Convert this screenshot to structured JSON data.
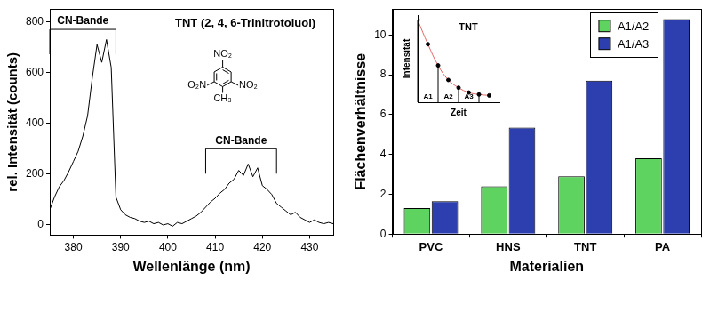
{
  "chart_data": [
    {
      "type": "line",
      "title": "TNT (2, 4, 6-Trinitrotoluol)",
      "x_label": "Wellenlänge (nm)",
      "y_label": "rel. Intensität (counts)",
      "x": [
        375,
        376,
        377,
        378,
        379,
        380,
        381,
        382,
        383,
        384,
        385,
        386,
        387,
        388,
        389,
        390,
        391,
        392,
        393,
        394,
        395,
        396,
        397,
        398,
        399,
        400,
        401,
        402,
        403,
        404,
        405,
        406,
        407,
        408,
        409,
        410,
        411,
        412,
        413,
        414,
        415,
        416,
        417,
        418,
        419,
        420,
        421,
        422,
        423,
        424,
        425,
        426,
        427,
        428,
        429,
        430,
        431,
        432,
        433,
        434,
        435
      ],
      "values": [
        60,
        110,
        150,
        175,
        210,
        250,
        290,
        350,
        430,
        580,
        710,
        640,
        730,
        620,
        110,
        60,
        40,
        30,
        25,
        15,
        10,
        15,
        5,
        10,
        0,
        5,
        -5,
        10,
        5,
        15,
        25,
        35,
        50,
        70,
        90,
        105,
        125,
        140,
        165,
        180,
        215,
        195,
        240,
        190,
        225,
        155,
        140,
        120,
        85,
        70,
        55,
        40,
        50,
        30,
        20,
        10,
        20,
        10,
        5,
        10,
        5
      ],
      "color": "#000000",
      "xlim": [
        375,
        435
      ],
      "xticks": [
        380,
        390,
        400,
        410,
        420,
        430
      ],
      "ylim": [
        -40,
        850
      ],
      "yticks": [
        0,
        200,
        400,
        600,
        800
      ],
      "grid": false,
      "annotations": [
        {
          "text": "CN-Bande",
          "x": [
            375,
            389
          ],
          "y": 770
        },
        {
          "text": "CN-Bande",
          "x": [
            408,
            423
          ],
          "y": 300
        }
      ],
      "structure_labels": [
        "NO₂",
        "O₂N",
        "NO₂",
        "CH₃"
      ]
    },
    {
      "type": "bar",
      "x_label": "Materialien",
      "y_label": "Flächenverhältnisse",
      "categories": [
        "PVC",
        "HNS",
        "TNT",
        "PA"
      ],
      "series": [
        {
          "name": "A1/A2",
          "color": "#5fd35f",
          "values": [
            1.3,
            2.4,
            2.9,
            3.8
          ]
        },
        {
          "name": "A1/A3",
          "color": "#2d3fae",
          "values": [
            1.65,
            5.35,
            7.7,
            10.8
          ]
        }
      ],
      "ylim": [
        0,
        11.3
      ],
      "yticks": [
        0,
        2,
        4,
        6,
        8,
        10
      ],
      "grid": false,
      "legend": "upper right"
    },
    {
      "type": "line",
      "title": "TNT",
      "x_label": "Zeit",
      "y_label": "Intensität",
      "x": [
        0,
        1,
        2,
        3,
        4,
        5,
        6,
        7
      ],
      "values": [
        10.5,
        8.0,
        5.8,
        4.3,
        3.5,
        3.0,
        2.8,
        2.7
      ],
      "color": "#e06666",
      "marker": "circle",
      "xlim": [
        0,
        8
      ],
      "ylim": [
        2,
        11
      ],
      "tick_labels": false,
      "grid": false,
      "annotations": [
        {
          "text": "A1",
          "x": [
            0,
            2
          ]
        },
        {
          "text": "A2",
          "x": [
            2,
            4
          ]
        },
        {
          "text": "A3",
          "x": [
            4,
            6
          ]
        }
      ]
    }
  ]
}
